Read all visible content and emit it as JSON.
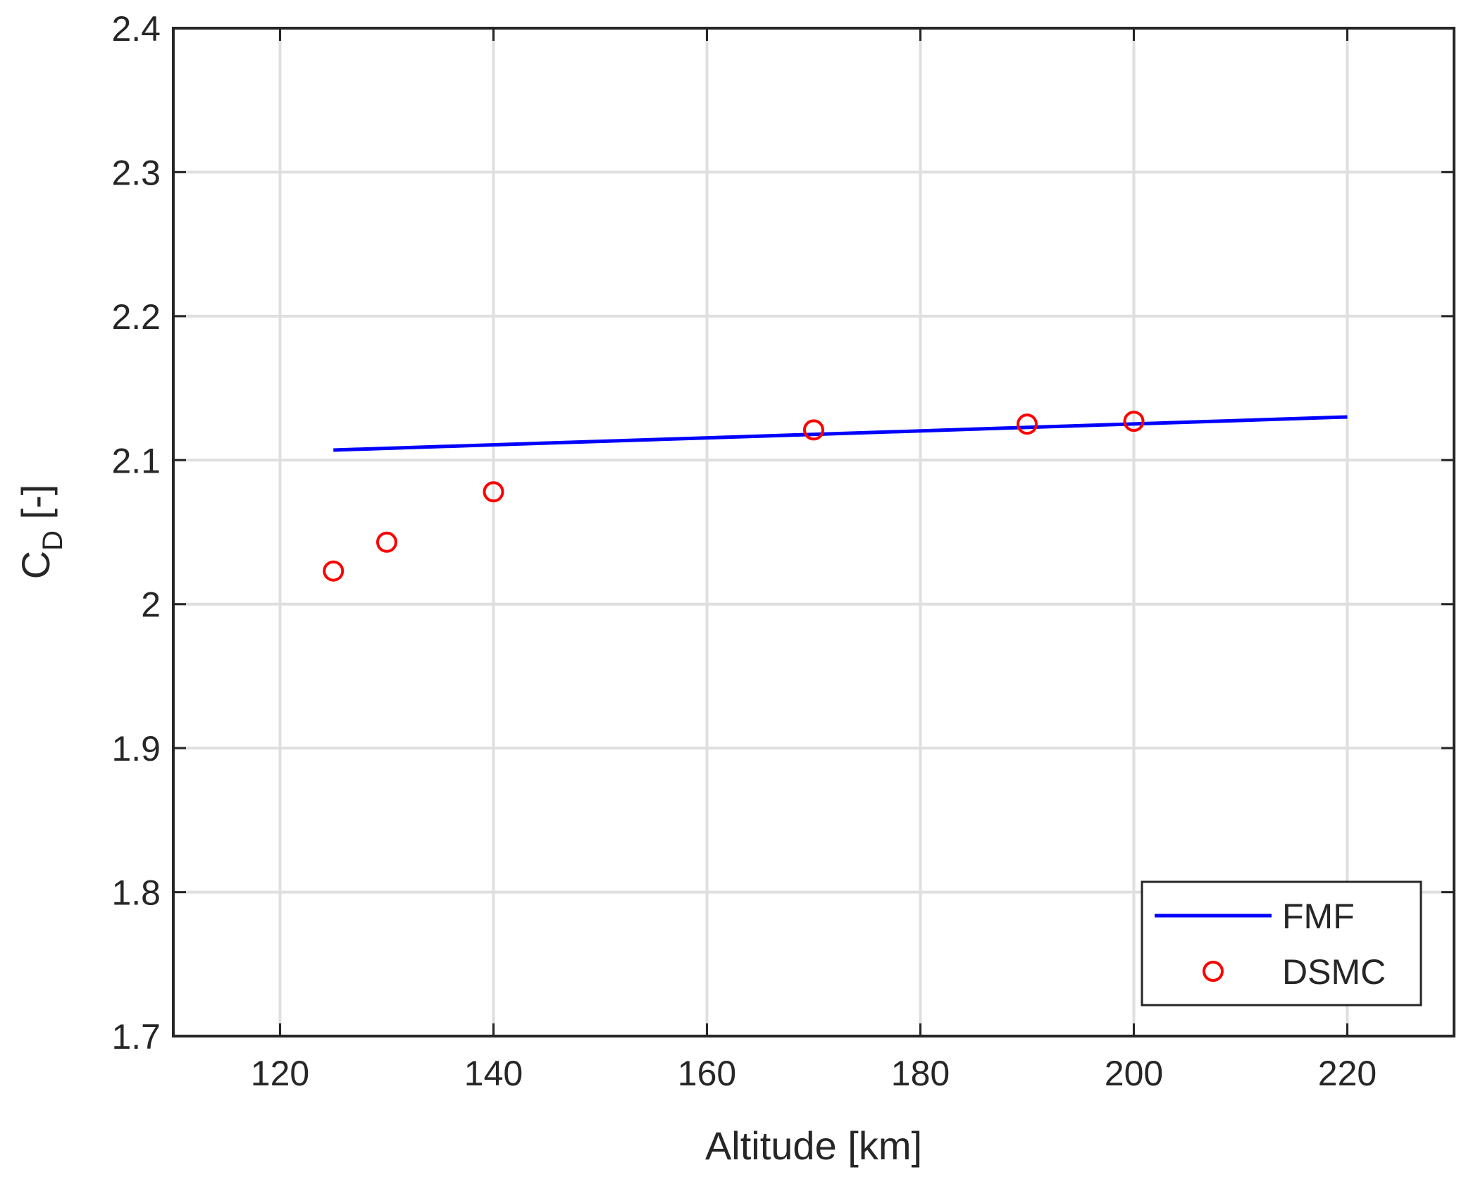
{
  "chart_data": {
    "type": "line",
    "xlabel": "Altitude [km]",
    "ylabel_main": "C",
    "ylabel_sub": "D",
    "ylabel_unit": " [-]",
    "xlim": [
      110,
      230
    ],
    "ylim": [
      1.7,
      2.4
    ],
    "x_ticks": [
      120,
      140,
      160,
      180,
      200,
      220
    ],
    "y_ticks": [
      1.7,
      1.8,
      1.9,
      2.0,
      2.1,
      2.2,
      2.3,
      2.4
    ],
    "x_tick_labels": [
      "120",
      "140",
      "160",
      "180",
      "200",
      "220"
    ],
    "y_tick_labels": [
      "1.7",
      "1.8",
      "1.9",
      "2",
      "2.1",
      "2.2",
      "2.3",
      "2.4"
    ],
    "grid": true,
    "legend_position": "bottom-right",
    "series": [
      {
        "name": "FMF",
        "style": "line",
        "color": "#0000ff",
        "x": [
          125,
          220
        ],
        "y": [
          2.107,
          2.13
        ]
      },
      {
        "name": "DSMC",
        "style": "marker-circle",
        "color": "#ff0000",
        "x": [
          125,
          130,
          140,
          170,
          190,
          200
        ],
        "y": [
          2.023,
          2.043,
          2.078,
          2.121,
          2.125,
          2.127
        ]
      }
    ]
  }
}
